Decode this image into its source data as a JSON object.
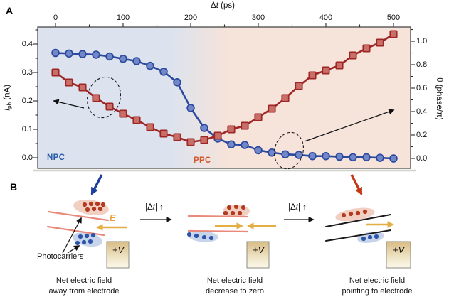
{
  "figure": {
    "panel_a_label": "A",
    "panel_b_label": "B"
  },
  "chart_data": {
    "type": "line",
    "x_axis": {
      "label_parts": [
        "Δ",
        "t",
        " (ps)"
      ],
      "ticks": [
        {
          "v": 0,
          "label": "0"
        },
        {
          "v": 100,
          "label": "100"
        },
        {
          "v": 200,
          "label": "200"
        },
        {
          "v": 300,
          "label": "300"
        },
        {
          "v": 400,
          "label": "400"
        },
        {
          "v": 500,
          "label": "500"
        }
      ],
      "minor_ticks": [
        50,
        150,
        250,
        350,
        450
      ],
      "range_ps": [
        -26,
        525
      ]
    },
    "y_left": {
      "label_parts": [
        "I",
        "ph",
        " (nA)"
      ],
      "ticks": [
        {
          "v": 0.0,
          "label": "0.0"
        },
        {
          "v": 0.1,
          "label": "0.1"
        },
        {
          "v": 0.2,
          "label": "0.2"
        },
        {
          "v": 0.3,
          "label": "0.3"
        },
        {
          "v": 0.4,
          "label": "0.4"
        }
      ],
      "minor_ticks": [
        0.05,
        0.15,
        0.25,
        0.35,
        0.45
      ],
      "range": [
        -0.0375,
        0.46
      ]
    },
    "y_right": {
      "label": "θ (phase/π)",
      "ticks": [
        {
          "v": 0.0,
          "label": "0.0"
        },
        {
          "v": 0.2,
          "label": "0.2"
        },
        {
          "v": 0.4,
          "label": "0.4"
        },
        {
          "v": 0.6,
          "label": "0.6"
        },
        {
          "v": 0.8,
          "label": "0.8"
        },
        {
          "v": 1.0,
          "label": "1.0"
        }
      ],
      "minor_ticks": [
        0.1,
        0.3,
        0.5,
        0.7,
        0.9,
        1.1
      ],
      "range": [
        -0.085,
        1.12
      ]
    },
    "regions": [
      {
        "label": "NPC",
        "text_color": "#2b5cab",
        "bg_color": "#dce3ee",
        "span_ps": [
          -26,
          215
        ]
      },
      {
        "label": "PPC",
        "text_color": "#d2562b",
        "bg_color": "#f6e3da",
        "span_ps": [
          215,
          525
        ]
      }
    ],
    "series": [
      {
        "name": "photocurrent-phase",
        "axis": "right",
        "marker": "circle",
        "line_color": "#2c49a0",
        "marker_fill": "#7287c7",
        "x_ps": [
          0,
          20,
          40,
          60,
          80,
          100,
          120,
          140,
          160,
          180,
          200,
          220,
          240,
          260,
          280,
          300,
          320,
          340,
          360,
          380,
          400,
          420,
          440,
          460,
          480,
          500
        ],
        "y": [
          0.9,
          0.895,
          0.89,
          0.885,
          0.87,
          0.85,
          0.83,
          0.79,
          0.74,
          0.65,
          0.43,
          0.26,
          0.17,
          0.12,
          0.115,
          0.07,
          0.05,
          0.035,
          0.03,
          0.02,
          0.02,
          0.015,
          0.01,
          0.01,
          0.005,
          0.0
        ]
      },
      {
        "name": "photocurrent-amplitude",
        "axis": "left",
        "marker": "square",
        "line_color": "#9e2626",
        "marker_fill": "#c86f68",
        "x_ps": [
          0,
          20,
          40,
          60,
          80,
          100,
          120,
          140,
          160,
          180,
          200,
          220,
          240,
          260,
          280,
          300,
          320,
          340,
          360,
          380,
          400,
          420,
          440,
          460,
          480,
          500
        ],
        "y": [
          0.3,
          0.265,
          0.2475,
          0.21,
          0.18,
          0.155,
          0.1325,
          0.1075,
          0.085,
          0.0725,
          0.055,
          0.0625,
          0.0775,
          0.1,
          0.1125,
          0.1425,
          0.1725,
          0.21,
          0.2525,
          0.29,
          0.3075,
          0.325,
          0.36,
          0.385,
          0.405,
          0.435
        ]
      }
    ],
    "annotations": [
      {
        "type": "dashed-ellipse",
        "target_series": "photocurrent-amplitude",
        "center_ps": 70,
        "arrow_to": "left-axis"
      },
      {
        "type": "dashed-ellipse",
        "target_series": "photocurrent-phase",
        "center_ps": 345,
        "arrow_to": "right-axis"
      }
    ]
  },
  "panel_b": {
    "transition": {
      "prefix": "|Δ",
      "t": "t",
      "suffix": "|",
      "arrow": "↑"
    },
    "stages": [
      {
        "caption_line1": "Net electric field",
        "caption_line2": "away from electrode",
        "electrode_label": "+V",
        "field_label": "E",
        "photocarriers_label": "Photocarriers"
      },
      {
        "caption_line1": "Net electric field",
        "caption_line2": "decrease to zero",
        "electrode_label": "+V"
      },
      {
        "caption_line1": "Net electric field",
        "caption_line2": "pointing to electrode",
        "electrode_label": "+V"
      }
    ],
    "colors": {
      "hole_dot": "#b13a1f",
      "electron_dot": "#2b53a8",
      "hole_blob": "#f2cfc3",
      "electron_blob": "#c7d4ea",
      "band_line_tilted": "#e8897c",
      "band_line_net": "#1a1a1a",
      "e_field_arrow": "#e3ae44",
      "field_label_color": "#e8a23c",
      "npc_arrow": "#1d3f9b",
      "ppc_arrow": "#c53a16",
      "annotation_arrow": "#111111",
      "electrode_top": "#d8bc84",
      "electrode_bottom": "#fbf7ea"
    }
  }
}
